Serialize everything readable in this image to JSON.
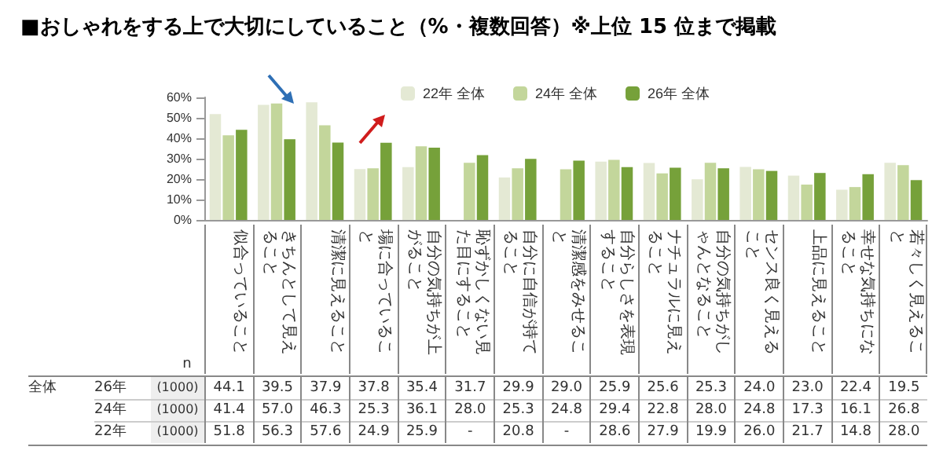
{
  "chart_data": {
    "type": "bar",
    "title": "■おしゃれをする上で大切にしていること（%・複数回答）※上位 15 位まで掲載",
    "categories": [
      "似合っていること",
      "きちんとして見えること",
      "清潔に見えること",
      "場に合っていること",
      "自分の気持ちが上がること",
      "恥ずかしくない見た目にすること",
      "自分に自信が持てること",
      "清潔感をみせること",
      "自分らしさを表現すること",
      "ナチュラルに見えること",
      "自分の気持ちがしゃんとなること",
      "センス良く見えること",
      "上品に見えること",
      "幸せな気持ちになること",
      "若々しく見えること"
    ],
    "series": [
      {
        "name": "22年 全体",
        "color": "#e4e9d4",
        "values": [
          51.8,
          56.3,
          57.6,
          24.9,
          25.9,
          null,
          20.8,
          null,
          28.6,
          27.9,
          19.9,
          26.0,
          21.7,
          14.8,
          28.0
        ],
        "value_labels": [
          "51.8",
          "56.3",
          "57.6",
          "24.9",
          "25.9",
          "-",
          "20.8",
          "-",
          "28.6",
          "27.9",
          "19.9",
          "26.0",
          "21.7",
          "14.8",
          "28.0"
        ]
      },
      {
        "name": "24年 全体",
        "color": "#c3d69b",
        "values": [
          41.4,
          57.0,
          46.3,
          25.3,
          36.1,
          28.0,
          25.3,
          24.8,
          29.4,
          22.8,
          28.0,
          24.8,
          17.3,
          16.1,
          26.8
        ],
        "value_labels": [
          "41.4",
          "57.0",
          "46.3",
          "25.3",
          "36.1",
          "28.0",
          "25.3",
          "24.8",
          "29.4",
          "22.8",
          "28.0",
          "24.8",
          "17.3",
          "16.1",
          "26.8"
        ]
      },
      {
        "name": "26年 全体",
        "color": "#76a13a",
        "values": [
          44.1,
          39.5,
          37.9,
          37.8,
          35.4,
          31.7,
          29.9,
          29.0,
          25.9,
          25.6,
          25.3,
          24.0,
          23.0,
          22.4,
          19.5
        ],
        "value_labels": [
          "44.1",
          "39.5",
          "37.9",
          "37.8",
          "35.4",
          "31.7",
          "29.9",
          "29.0",
          "25.9",
          "25.6",
          "25.3",
          "24.0",
          "23.0",
          "22.4",
          "19.5"
        ]
      }
    ],
    "ylim": [
      0,
      60
    ],
    "yticks": [
      {
        "value": 0,
        "label": "0%"
      },
      {
        "value": 10,
        "label": "10%"
      },
      {
        "value": 20,
        "label": "20%"
      },
      {
        "value": 30,
        "label": "30%"
      },
      {
        "value": 40,
        "label": "40%"
      },
      {
        "value": 50,
        "label": "50%"
      },
      {
        "value": 60,
        "label": "60%"
      }
    ],
    "legend": "top",
    "annotations": [
      "全体",
      "26年",
      "24年",
      "22年",
      "n",
      "(1000)",
      "(1000)",
      "(1000)"
    ]
  }
}
